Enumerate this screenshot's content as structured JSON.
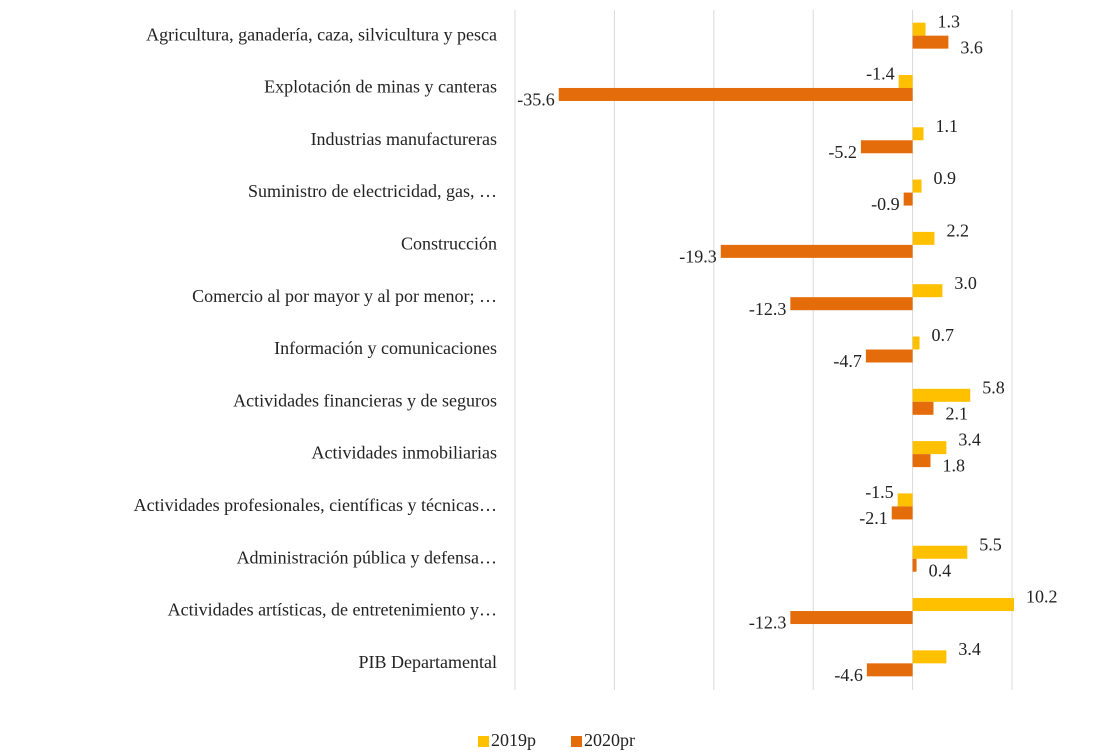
{
  "chart_data": {
    "type": "hbar",
    "categories": [
      "Agricultura, ganadería, caza, silvicultura y pesca",
      "Explotación de minas y canteras",
      "Industrias manufactureras",
      "Suministro de electricidad, gas, …",
      "Construcción",
      "Comercio al por mayor y al por menor; …",
      "Información y comunicaciones",
      "Actividades financieras y de seguros",
      "Actividades inmobiliarias",
      "Actividades profesionales, científicas y técnicas…",
      "Administración pública y defensa…",
      "Actividades artísticas, de entretenimiento y…",
      "PIB Departamental"
    ],
    "series": [
      {
        "name": "2019p",
        "color": "#ffc000",
        "values": [
          1.3,
          -1.4,
          1.1,
          0.9,
          2.2,
          3.0,
          0.7,
          5.8,
          3.4,
          -1.5,
          5.5,
          10.2,
          3.4
        ],
        "value_labels": [
          "1.3",
          "-1.4",
          "1.1",
          "0.9",
          "2.2",
          "3.0",
          "0.7",
          "5.8",
          "3.4",
          "-1.5",
          "5.5",
          "10.2",
          "3.4"
        ]
      },
      {
        "name": "2020pr",
        "color": "#e46c0a",
        "values": [
          3.6,
          -35.6,
          -5.2,
          -0.9,
          -19.3,
          -12.3,
          -4.7,
          2.1,
          1.8,
          -2.1,
          0.4,
          -12.3,
          -4.6
        ],
        "value_labels": [
          "3.6",
          "-35.6",
          "-5.2",
          "-0.9",
          "-19.3",
          "-12.3",
          "-4.7",
          "2.1",
          "1.8",
          "-2.1",
          "0.4",
          "-12.3",
          "-4.6"
        ]
      }
    ],
    "xlim": [
      -40,
      10
    ],
    "xticks": [
      -40,
      -30,
      -20,
      -10,
      0,
      10
    ],
    "grid": true,
    "legend": "bottom"
  }
}
